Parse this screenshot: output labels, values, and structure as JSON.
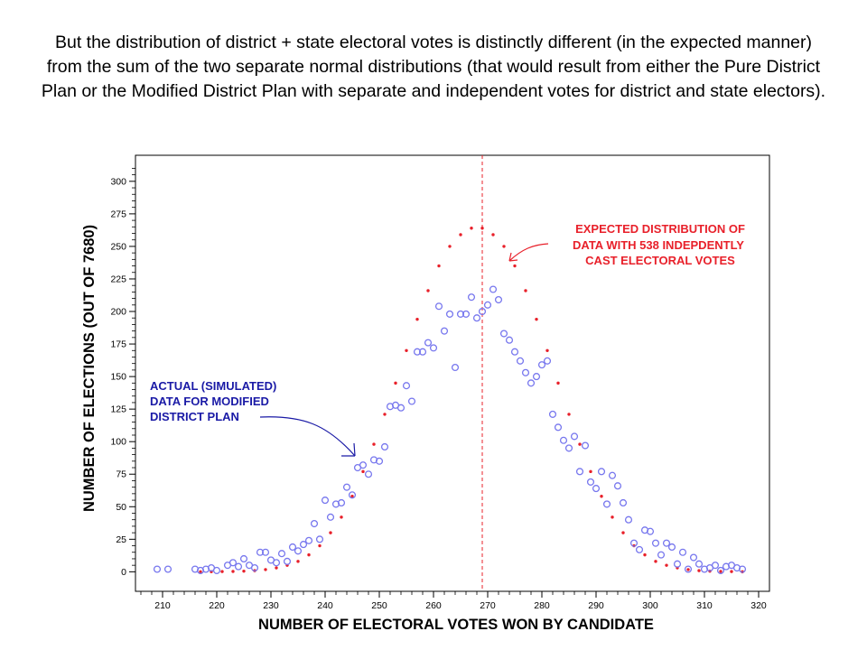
{
  "headline": "But the distribution of district + state electoral votes is distinctly different (in the expected manner) from the sum of the two separate normal distributions (that would result from either the Pure District Plan or the Modified District Plan with separate and independent votes for district and state electors).",
  "chart_data": {
    "type": "scatter",
    "xlabel": "NUMBER OF ELECTORAL VOTES WON BY CANDIDATE",
    "ylabel": "NUMBER OF ELECTIONS (OUT OF 7680)",
    "xlim": [
      205,
      322
    ],
    "ylim": [
      -15,
      320
    ],
    "x_ticks": [
      210,
      220,
      230,
      240,
      250,
      260,
      270,
      280,
      290,
      300,
      310,
      320
    ],
    "y_ticks": [
      0,
      25,
      50,
      75,
      100,
      125,
      150,
      175,
      200,
      225,
      250,
      275,
      300
    ],
    "grid": false,
    "reference_line": {
      "x": 269,
      "style": "dashed",
      "color": "#e8202a"
    },
    "colors": {
      "actual": "#7777ee",
      "expected": "#e8202a",
      "annotation_blue": "#1a1aa6",
      "annotation_red": "#e8202a"
    },
    "annotations": {
      "expected": [
        "EXPECTED DISTRIBUTION OF",
        "DATA WITH 538 INDEPDENTLY",
        "CAST ELECTORAL VOTES"
      ],
      "actual": [
        "ACTUAL (SIMULATED)",
        "DATA FOR MODIFIED",
        "DISTRICT PLAN"
      ]
    },
    "series": [
      {
        "marker": "open-circle",
        "x": [
          209,
          211,
          216,
          217,
          218,
          219,
          220,
          222,
          223,
          224,
          225,
          226,
          227,
          228,
          229,
          230,
          231,
          232,
          233,
          234,
          235,
          236,
          237,
          238,
          239,
          240,
          241,
          242,
          243,
          244,
          245,
          246,
          247,
          248,
          249,
          250,
          251,
          252,
          253,
          254,
          255,
          256,
          257,
          258,
          259,
          260,
          261,
          262,
          263,
          264,
          265,
          266,
          267,
          268,
          269,
          270,
          271,
          272,
          273,
          274,
          275,
          276,
          277,
          278,
          279,
          280,
          281,
          282,
          283,
          284,
          285,
          286,
          287,
          288,
          289,
          290,
          291,
          292,
          293,
          294,
          295,
          296,
          297,
          298,
          299,
          300,
          301,
          302,
          303,
          304,
          305,
          306,
          307,
          308,
          309,
          310,
          311,
          312,
          313,
          314,
          315,
          316,
          317
        ],
        "y": [
          2,
          2,
          2,
          1,
          2,
          3,
          1,
          5,
          7,
          4,
          10,
          5,
          3,
          15,
          15,
          9,
          7,
          14,
          8,
          19,
          16,
          21,
          24,
          37,
          25,
          55,
          42,
          52,
          53,
          65,
          59,
          80,
          82,
          75,
          86,
          85,
          96,
          127,
          128,
          126,
          143,
          131,
          169,
          169,
          176,
          172,
          204,
          185,
          198,
          157,
          198,
          198,
          211,
          195,
          200,
          205,
          217,
          209,
          183,
          178,
          169,
          162,
          153,
          145,
          150,
          159,
          162,
          121,
          111,
          101,
          95,
          104,
          77,
          97,
          69,
          64,
          77,
          52,
          74,
          66,
          53,
          40,
          22,
          17,
          32,
          31,
          22,
          13,
          22,
          19,
          6,
          15,
          2,
          11,
          6,
          2,
          3,
          5,
          1,
          4,
          5,
          3,
          2
        ]
      },
      {
        "marker": "dot",
        "x": [
          217,
          219,
          221,
          223,
          225,
          227,
          229,
          231,
          233,
          235,
          237,
          239,
          241,
          243,
          245,
          247,
          249,
          251,
          253,
          255,
          257,
          259,
          261,
          263,
          265,
          267,
          269,
          271,
          273,
          275,
          277,
          279,
          281,
          283,
          285,
          287,
          289,
          291,
          293,
          295,
          297,
          299,
          301,
          303,
          305,
          307,
          309,
          311,
          313,
          315,
          317
        ],
        "y": [
          0,
          0.1,
          0.2,
          0.3,
          0.5,
          0.9,
          1.7,
          3,
          5,
          8,
          13,
          20,
          30,
          42,
          58,
          77,
          98,
          121,
          145,
          170,
          194,
          216,
          235,
          250,
          259,
          264,
          264,
          259,
          250,
          235,
          216,
          194,
          170,
          145,
          121,
          98,
          77,
          58,
          42,
          30,
          20,
          13,
          8,
          5,
          3,
          1.7,
          0.9,
          0.5,
          0.3,
          0.2,
          0
        ]
      }
    ]
  }
}
